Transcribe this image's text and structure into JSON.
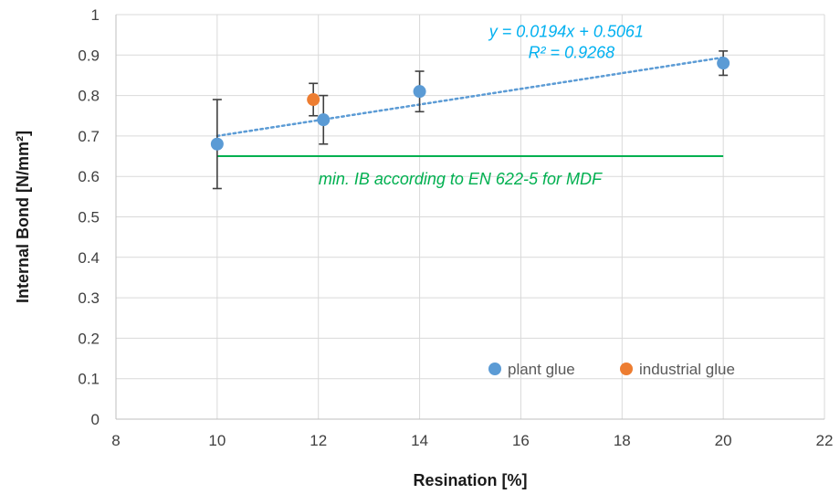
{
  "chart_data": {
    "type": "scatter",
    "title": "",
    "xlabel": "Resination [%]",
    "ylabel": "Internal Bond [N/mm²]",
    "xlim": [
      8,
      22
    ],
    "ylim": [
      0,
      1
    ],
    "x_ticks": [
      8,
      10,
      12,
      14,
      16,
      18,
      20,
      22
    ],
    "y_ticks": [
      0,
      0.1,
      0.2,
      0.3,
      0.4,
      0.5,
      0.6,
      0.7,
      0.8,
      0.9,
      1
    ],
    "x_tick_labels": [
      "8",
      "10",
      "12",
      "14",
      "16",
      "18",
      "20",
      "22"
    ],
    "y_tick_labels": [
      "0",
      "0.1",
      "0.2",
      "0.3",
      "0.4",
      "0.5",
      "0.6",
      "0.7",
      "0.8",
      "0.9",
      "1"
    ],
    "grid": "vertical and horizontal",
    "legend_position": "bottom-right",
    "series": [
      {
        "name": "plant glue",
        "color": "#5b9bd5",
        "points": [
          {
            "x": 10,
            "y": 0.68,
            "err_low": 0.57,
            "err_high": 0.79
          },
          {
            "x": 12.1,
            "y": 0.74,
            "err_low": 0.68,
            "err_high": 0.8
          },
          {
            "x": 14,
            "y": 0.81,
            "err_low": 0.76,
            "err_high": 0.86
          },
          {
            "x": 20,
            "y": 0.88,
            "err_low": 0.85,
            "err_high": 0.91
          }
        ]
      },
      {
        "name": "industrial glue",
        "color": "#ed7d31",
        "points": [
          {
            "x": 11.9,
            "y": 0.79,
            "err_low": 0.75,
            "err_high": 0.83
          }
        ]
      }
    ],
    "trendline": {
      "slope": 0.0194,
      "intercept": 0.5061,
      "x_range": [
        10,
        20
      ],
      "color": "#5b9bd5",
      "equation_label": "y = 0.0194x + 0.5061",
      "r2_label": "R² = 0.9268",
      "label_color": "#00b0f0"
    },
    "reference_line": {
      "y": 0.65,
      "x_range": [
        10,
        20
      ],
      "color": "#00b050",
      "label": "min. IB according to EN 622-5 for MDF"
    },
    "errorbar_color": "#404040"
  }
}
